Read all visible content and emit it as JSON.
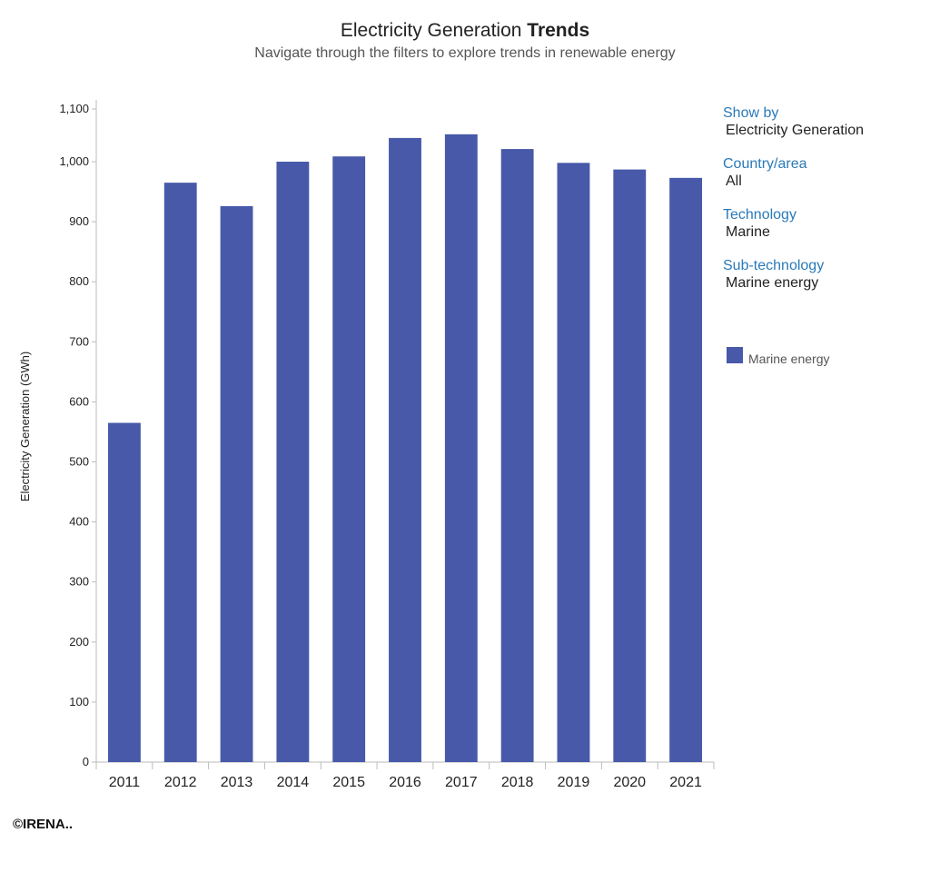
{
  "header": {
    "title_regular": "Electricity Generation",
    "title_bold": "Trends",
    "subtitle": "Navigate through the filters to explore trends in renewable energy"
  },
  "filters": [
    {
      "label": "Show by",
      "value": "Electricity Generation"
    },
    {
      "label": "Country/area",
      "value": "All"
    },
    {
      "label": "Technology",
      "value": "Marine"
    },
    {
      "label": "Sub-technology",
      "value": "Marine energy"
    }
  ],
  "legend": {
    "label": "Marine energy",
    "color": "#4759a8"
  },
  "credit": "©IRENA..",
  "chart_data": {
    "type": "bar",
    "title": "Electricity Generation Trends",
    "subtitle": "Navigate through the filters to explore trends in renewable energy",
    "xlabel": "",
    "ylabel": "Electricity Generation (GWh)",
    "categories": [
      "2011",
      "2012",
      "2013",
      "2014",
      "2015",
      "2016",
      "2017",
      "2018",
      "2019",
      "2020",
      "2021"
    ],
    "series": [
      {
        "name": "Marine energy",
        "color": "#4759a8",
        "values": [
          565,
          965,
          926,
          1000,
          1010,
          1045,
          1052,
          1024,
          998,
          987,
          973
        ]
      }
    ],
    "y_segments": [
      {
        "from": 0,
        "to": 1000,
        "ticks": [
          0,
          100,
          200,
          300,
          400,
          500,
          600,
          700,
          800,
          900,
          1000
        ]
      },
      {
        "from": 1000,
        "to": 1100,
        "ticks": [
          1100
        ]
      }
    ],
    "y_tick_labels": [
      "0",
      "100",
      "200",
      "300",
      "400",
      "500",
      "600",
      "700",
      "800",
      "900",
      "1,000",
      "1,100"
    ],
    "ylim": [
      0,
      1100
    ],
    "grid": false,
    "legend_position": "right"
  }
}
